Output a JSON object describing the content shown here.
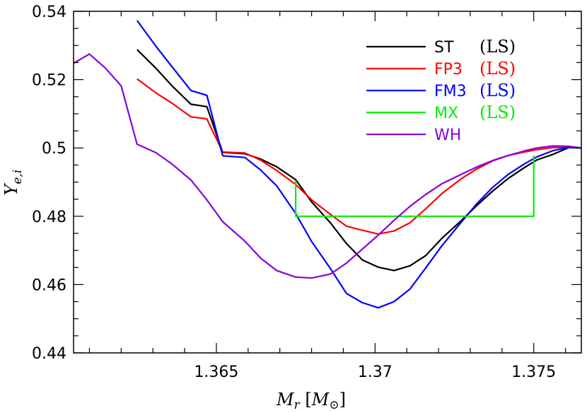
{
  "chart_data": {
    "type": "line",
    "xlabel": "M_r [M_⊙]",
    "ylabel": "Y_e,i",
    "xlim": [
      1.3605,
      1.3765
    ],
    "ylim": [
      0.44,
      0.54
    ],
    "x_ticks": [
      1.365,
      1.37,
      1.375
    ],
    "x_tick_labels": [
      "1.365",
      "1.37",
      "1.375"
    ],
    "y_ticks": [
      0.44,
      0.46,
      0.48,
      0.5,
      0.52,
      0.54
    ],
    "y_tick_labels": [
      "0.44",
      "0.46",
      "0.48",
      "0.5",
      "0.52",
      "0.54"
    ],
    "legend_position": "top-right",
    "grid": false,
    "series": [
      {
        "name": "ST",
        "model": "(LS)",
        "color": "#000000",
        "x": [
          1.3625,
          1.3631,
          1.3636,
          1.3642,
          1.3647,
          1.3652,
          1.3659,
          1.3664,
          1.3669,
          1.3675,
          1.368,
          1.3686,
          1.3691,
          1.3696,
          1.3701,
          1.3706,
          1.3711,
          1.3716,
          1.3721,
          1.3727,
          1.3732,
          1.3737,
          1.3742,
          1.3747,
          1.3751,
          1.3756,
          1.3761,
          1.3765
        ],
        "y": [
          0.5288,
          0.5233,
          0.5182,
          0.5128,
          0.5121,
          0.4987,
          0.4983,
          0.4967,
          0.4945,
          0.4907,
          0.4842,
          0.478,
          0.472,
          0.4672,
          0.4651,
          0.4641,
          0.4655,
          0.4685,
          0.4735,
          0.4786,
          0.4831,
          0.4873,
          0.4911,
          0.4942,
          0.4965,
          0.4981,
          0.5001,
          0.5
        ]
      },
      {
        "name": "FP3",
        "model": "(LS)",
        "color": "#ff0000",
        "x": [
          1.3625,
          1.3631,
          1.3636,
          1.3642,
          1.3647,
          1.3652,
          1.3659,
          1.3664,
          1.3669,
          1.3675,
          1.368,
          1.3686,
          1.3691,
          1.3696,
          1.3701,
          1.3706,
          1.3711,
          1.3716,
          1.3721,
          1.3727,
          1.3732,
          1.3737,
          1.3742,
          1.3747,
          1.3751,
          1.3756,
          1.3761,
          1.3765
        ],
        "y": [
          0.5202,
          0.5161,
          0.5131,
          0.5091,
          0.5085,
          0.4988,
          0.4985,
          0.4964,
          0.4934,
          0.4893,
          0.4848,
          0.4805,
          0.4771,
          0.4759,
          0.4748,
          0.4757,
          0.4781,
          0.4822,
          0.4866,
          0.4909,
          0.4938,
          0.4962,
          0.4978,
          0.4988,
          0.4995,
          0.5001,
          0.5002,
          0.5
        ]
      },
      {
        "name": "FM3",
        "model": "(LS)",
        "color": "#0000ff",
        "x": [
          1.3625,
          1.3631,
          1.3636,
          1.3642,
          1.3647,
          1.3652,
          1.3659,
          1.3664,
          1.3669,
          1.3675,
          1.368,
          1.3686,
          1.3691,
          1.3696,
          1.3701,
          1.3706,
          1.3711,
          1.3716,
          1.3721,
          1.3727,
          1.3732,
          1.3737,
          1.3742,
          1.3747,
          1.3751,
          1.3756,
          1.3761,
          1.3765
        ],
        "y": [
          0.5373,
          0.5297,
          0.5238,
          0.5168,
          0.5154,
          0.4977,
          0.4972,
          0.4935,
          0.4889,
          0.4808,
          0.4726,
          0.4646,
          0.4574,
          0.4547,
          0.4532,
          0.455,
          0.4587,
          0.4649,
          0.4713,
          0.4781,
          0.4836,
          0.4884,
          0.4923,
          0.4953,
          0.4974,
          0.4992,
          0.5002,
          0.5
        ]
      },
      {
        "name": "MX",
        "model": "(LS)",
        "color": "#00ee00",
        "x": [
          1.3675,
          1.3675,
          1.375,
          1.375
        ],
        "y": [
          0.4905,
          0.48,
          0.48,
          0.4978
        ]
      },
      {
        "name": "WH",
        "model": "",
        "color": "#8800dd",
        "x": [
          1.3605,
          1.361,
          1.3615,
          1.362,
          1.3625,
          1.3631,
          1.3636,
          1.3642,
          1.3647,
          1.3652,
          1.3659,
          1.3664,
          1.3669,
          1.3675,
          1.368,
          1.3686,
          1.3691,
          1.3696,
          1.3701,
          1.3706,
          1.3711,
          1.3716,
          1.3721,
          1.3727,
          1.3732,
          1.3737,
          1.3742,
          1.3747,
          1.3751,
          1.3756,
          1.3761,
          1.3765
        ],
        "y": [
          0.5248,
          0.5275,
          0.5234,
          0.5182,
          0.5011,
          0.4986,
          0.4953,
          0.4906,
          0.4848,
          0.4784,
          0.4727,
          0.4677,
          0.4641,
          0.4622,
          0.4619,
          0.4631,
          0.4663,
          0.4704,
          0.4745,
          0.4788,
          0.4829,
          0.4864,
          0.4895,
          0.4922,
          0.4944,
          0.4963,
          0.4978,
          0.4991,
          0.5,
          0.5006,
          0.5005,
          0.5
        ]
      }
    ]
  }
}
